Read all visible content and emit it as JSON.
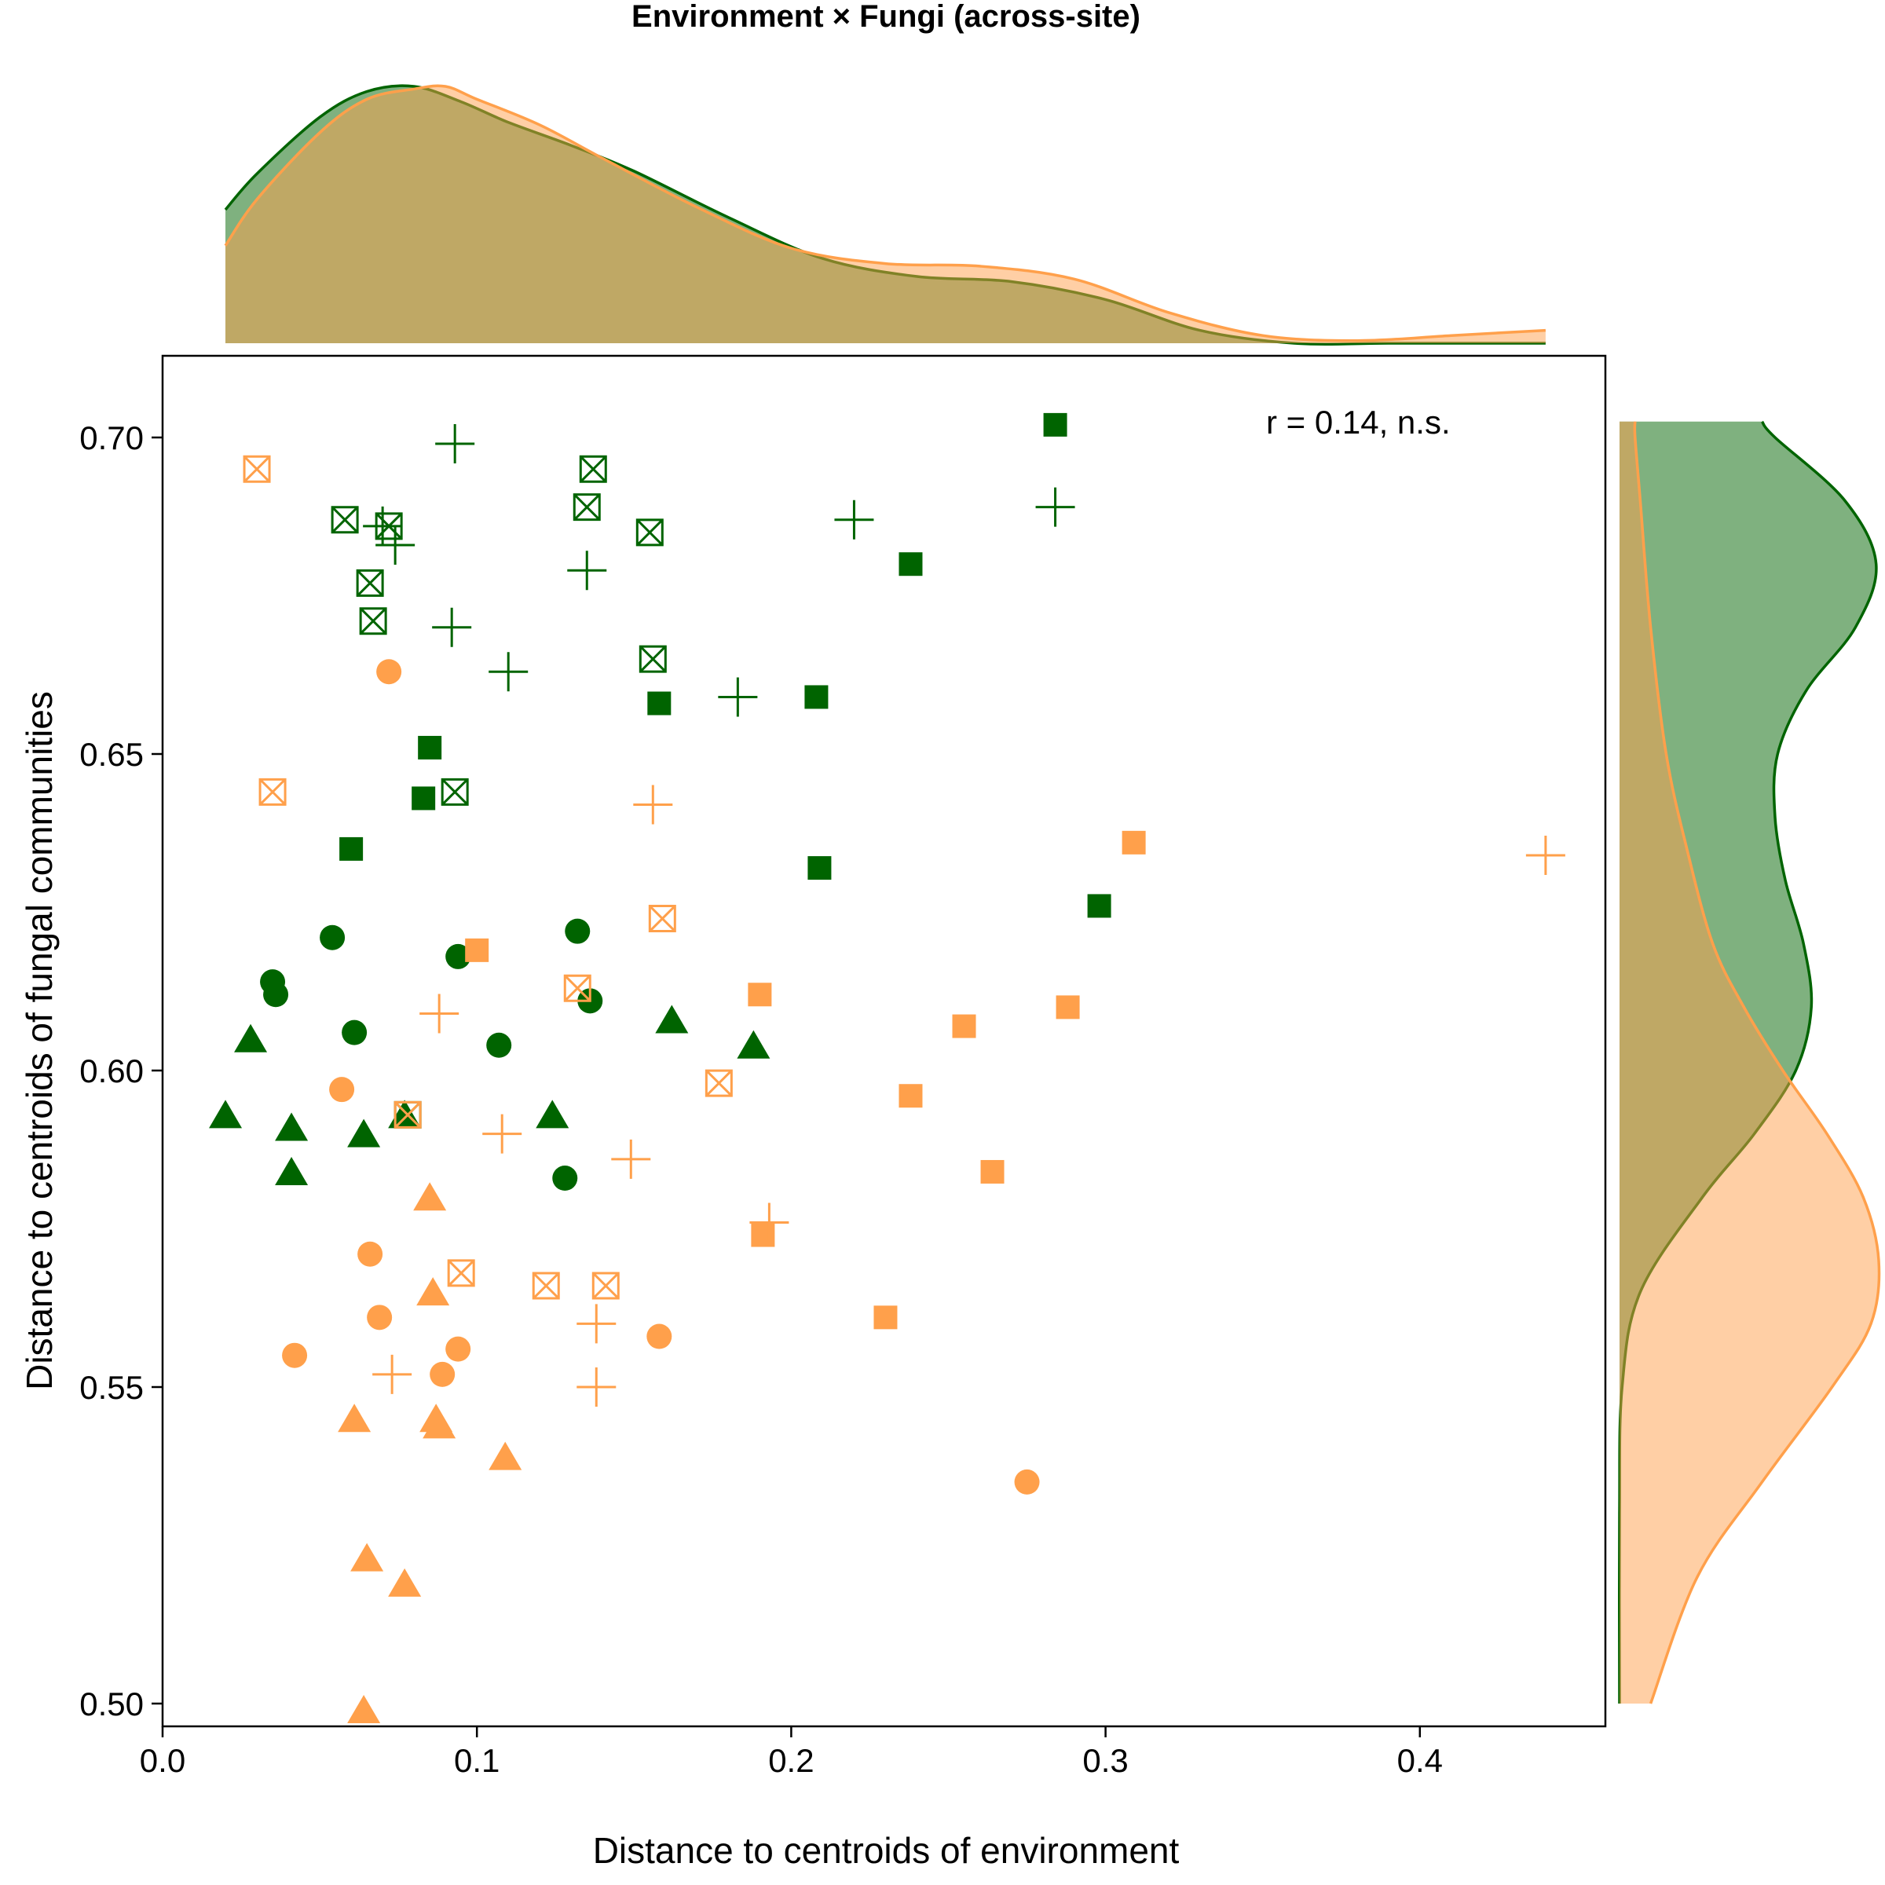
{
  "chart_data": {
    "type": "scatter",
    "title": "Environment × Fungi (across-site)",
    "xlabel": "Distance to centroids of environment",
    "ylabel": "Distance to centroids of fungal communities",
    "xlim": [
      0.0,
      0.46
    ],
    "ylim": [
      0.487,
      0.7125
    ],
    "x_ticks": [
      0.0,
      0.1,
      0.2,
      0.3,
      0.4
    ],
    "x_tick_labels": [
      "0.0",
      "0.1",
      "0.2",
      "0.3",
      "0.4"
    ],
    "y_ticks": [
      0.5,
      0.55,
      0.6,
      0.65,
      0.7
    ],
    "y_tick_labels": [
      "0.50",
      "0.55",
      "0.60",
      "0.65",
      "0.70"
    ],
    "grid": false,
    "legend": "none",
    "annotation": "r = 0.14, n.s.",
    "colors": {
      "green": "#006400",
      "orange": "#ffa04b",
      "green_fill": "#80b27f",
      "orange_fill": "#ffd2a5",
      "overlap": "#c0aa68"
    },
    "marginal_x_curves": [
      {
        "color": "green",
        "x": [
          0.02,
          0.03,
          0.05,
          0.065,
          0.08,
          0.095,
          0.11,
          0.13,
          0.15,
          0.18,
          0.21,
          0.24,
          0.27,
          0.3,
          0.33,
          0.36,
          0.39,
          0.42,
          0.44
        ],
        "density": [
          0.52,
          0.66,
          0.88,
          0.98,
          1.0,
          0.94,
          0.86,
          0.77,
          0.67,
          0.49,
          0.33,
          0.26,
          0.24,
          0.17,
          0.05,
          0.0,
          0.0,
          0.0,
          0.0
        ]
      },
      {
        "color": "orange",
        "x": [
          0.02,
          0.03,
          0.05,
          0.065,
          0.08,
          0.09,
          0.1,
          0.12,
          0.14,
          0.17,
          0.2,
          0.23,
          0.26,
          0.29,
          0.32,
          0.35,
          0.38,
          0.41,
          0.44
        ],
        "density": [
          0.38,
          0.56,
          0.82,
          0.95,
          0.99,
          1.0,
          0.95,
          0.85,
          0.72,
          0.53,
          0.37,
          0.31,
          0.3,
          0.25,
          0.12,
          0.03,
          0.01,
          0.03,
          0.05
        ]
      }
    ],
    "marginal_y_curves": [
      {
        "color": "green",
        "y": [
          0.5,
          0.53,
          0.55,
          0.565,
          0.58,
          0.59,
          0.6,
          0.61,
          0.62,
          0.63,
          0.64,
          0.65,
          0.66,
          0.67,
          0.68,
          0.69,
          0.7,
          0.7025
        ],
        "density": [
          0.0,
          0.0,
          0.01,
          0.08,
          0.32,
          0.52,
          0.68,
          0.74,
          0.71,
          0.64,
          0.6,
          0.61,
          0.72,
          0.91,
          0.99,
          0.87,
          0.6,
          0.55
        ]
      },
      {
        "color": "orange",
        "y": [
          0.5,
          0.52,
          0.535,
          0.55,
          0.56,
          0.57,
          0.58,
          0.59,
          0.6,
          0.61,
          0.62,
          0.635,
          0.65,
          0.67,
          0.69,
          0.7,
          0.7025
        ],
        "density": [
          0.12,
          0.3,
          0.55,
          0.82,
          0.97,
          1.0,
          0.94,
          0.8,
          0.63,
          0.48,
          0.36,
          0.26,
          0.18,
          0.12,
          0.08,
          0.06,
          0.06
        ]
      }
    ],
    "series": [
      {
        "color": "green",
        "marker": "square-filled",
        "x": [
          0.284,
          0.238,
          0.158,
          0.208,
          0.085,
          0.083,
          0.06,
          0.209,
          0.298
        ],
        "y": [
          0.702,
          0.68,
          0.658,
          0.659,
          0.651,
          0.643,
          0.635,
          0.632,
          0.626
        ]
      },
      {
        "color": "green",
        "marker": "square-x",
        "x": [
          0.137,
          0.135,
          0.058,
          0.072,
          0.155,
          0.066,
          0.067,
          0.156,
          0.093,
          0.078
        ],
        "y": [
          0.695,
          0.689,
          0.687,
          0.686,
          0.685,
          0.677,
          0.671,
          0.665,
          0.644,
          0.593
        ]
      },
      {
        "color": "green",
        "marker": "plus",
        "x": [
          0.093,
          0.284,
          0.22,
          0.074,
          0.07,
          0.135,
          0.092,
          0.11,
          0.183
        ],
        "y": [
          0.699,
          0.689,
          0.687,
          0.683,
          0.686,
          0.679,
          0.67,
          0.663,
          0.659
        ]
      },
      {
        "color": "green",
        "marker": "circle",
        "x": [
          0.132,
          0.054,
          0.094,
          0.035,
          0.036,
          0.136,
          0.061,
          0.107,
          0.128
        ],
        "y": [
          0.622,
          0.621,
          0.618,
          0.614,
          0.612,
          0.611,
          0.606,
          0.604,
          0.583
        ]
      },
      {
        "color": "green",
        "marker": "triangle",
        "x": [
          0.162,
          0.028,
          0.188,
          0.02,
          0.124,
          0.077,
          0.041,
          0.064,
          0.041
        ],
        "y": [
          0.608,
          0.605,
          0.604,
          0.593,
          0.593,
          0.593,
          0.591,
          0.59,
          0.584
        ]
      },
      {
        "color": "orange",
        "marker": "square-filled",
        "x": [
          0.309,
          0.1,
          0.19,
          0.288,
          0.255,
          0.238,
          0.264,
          0.191,
          0.23
        ],
        "y": [
          0.636,
          0.619,
          0.612,
          0.61,
          0.607,
          0.596,
          0.584,
          0.574,
          0.561
        ]
      },
      {
        "color": "orange",
        "marker": "square-x",
        "x": [
          0.03,
          0.035,
          0.159,
          0.132,
          0.177,
          0.078,
          0.095,
          0.122,
          0.141
        ],
        "y": [
          0.695,
          0.644,
          0.624,
          0.613,
          0.598,
          0.593,
          0.568,
          0.566,
          0.566
        ]
      },
      {
        "color": "orange",
        "marker": "plus",
        "x": [
          0.44,
          0.156,
          0.088,
          0.108,
          0.149,
          0.193,
          0.138,
          0.073,
          0.138
        ],
        "y": [
          0.634,
          0.642,
          0.609,
          0.59,
          0.586,
          0.576,
          0.56,
          0.552,
          0.55
        ]
      },
      {
        "color": "orange",
        "marker": "circle",
        "x": [
          0.072,
          0.057,
          0.066,
          0.069,
          0.042,
          0.094,
          0.089,
          0.158,
          0.275
        ],
        "y": [
          0.663,
          0.597,
          0.571,
          0.561,
          0.555,
          0.556,
          0.552,
          0.558,
          0.535
        ]
      },
      {
        "color": "orange",
        "marker": "triangle",
        "x": [
          0.085,
          0.086,
          0.061,
          0.087,
          0.088,
          0.109,
          0.065,
          0.077,
          0.064
        ],
        "y": [
          0.58,
          0.565,
          0.545,
          0.545,
          0.544,
          0.539,
          0.523,
          0.519,
          0.499
        ]
      }
    ]
  }
}
